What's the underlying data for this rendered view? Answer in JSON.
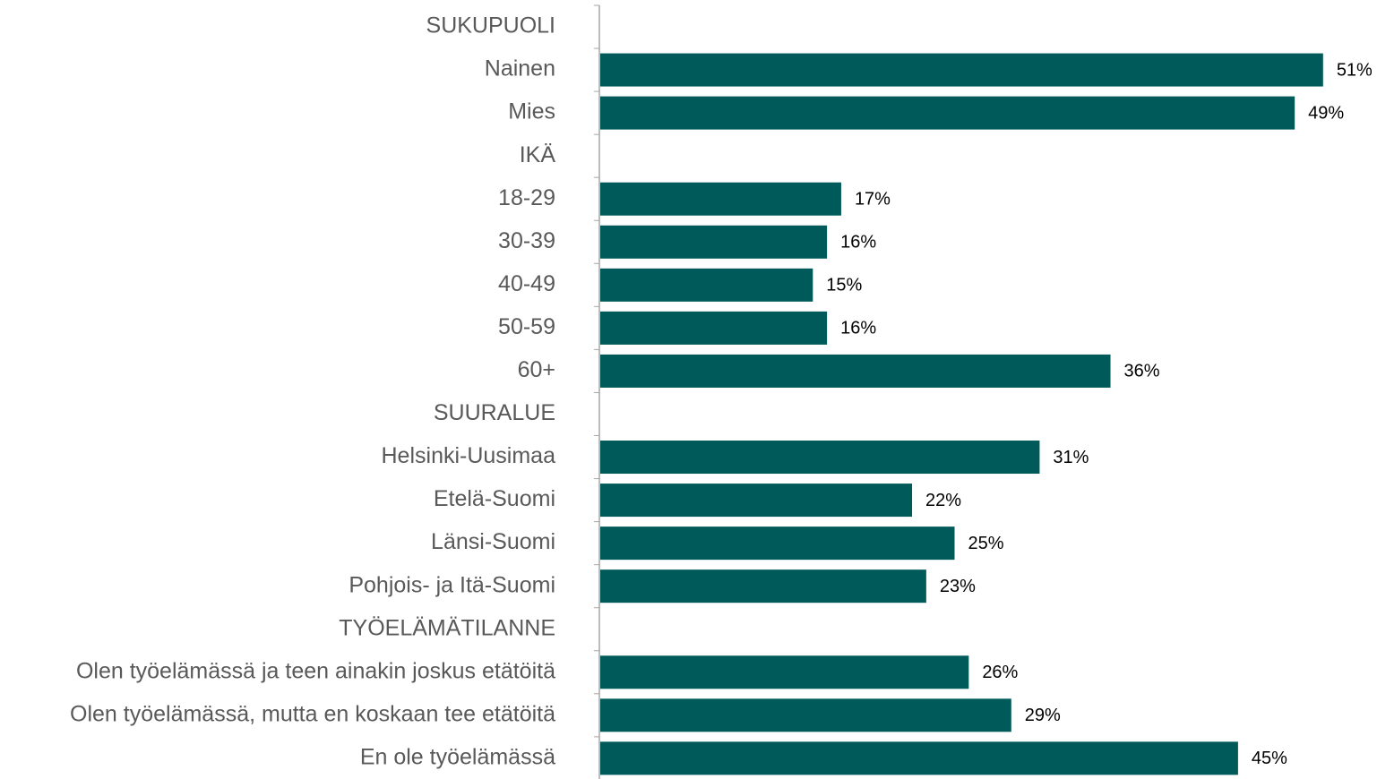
{
  "chart_data": {
    "type": "bar",
    "orientation": "horizontal",
    "categories": [
      "SUKUPUOLI",
      "Nainen",
      "Mies",
      "IKÄ",
      "18-29",
      "30-39",
      "40-49",
      "50-59",
      "60+",
      "SUURALUE",
      "Helsinki-Uusimaa",
      "Etelä-Suomi",
      "Länsi-Suomi",
      "Pohjois- ja Itä-Suomi",
      "TYÖELÄMÄTILANNE",
      "Olen työelämässä ja teen ainakin joskus etätöitä",
      "Olen työelämässä, mutta en koskaan tee etätöitä",
      "En ole työelämässä"
    ],
    "values": [
      null,
      51,
      49,
      null,
      17,
      16,
      15,
      16,
      36,
      null,
      31,
      22,
      25,
      23,
      null,
      26,
      29,
      45
    ],
    "value_labels": [
      null,
      "51%",
      "49%",
      null,
      "17%",
      "16%",
      "15%",
      "16%",
      "36%",
      null,
      "31%",
      "22%",
      "25%",
      "23%",
      null,
      "26%",
      "29%",
      "45%"
    ],
    "color": "#005a5a"
  }
}
